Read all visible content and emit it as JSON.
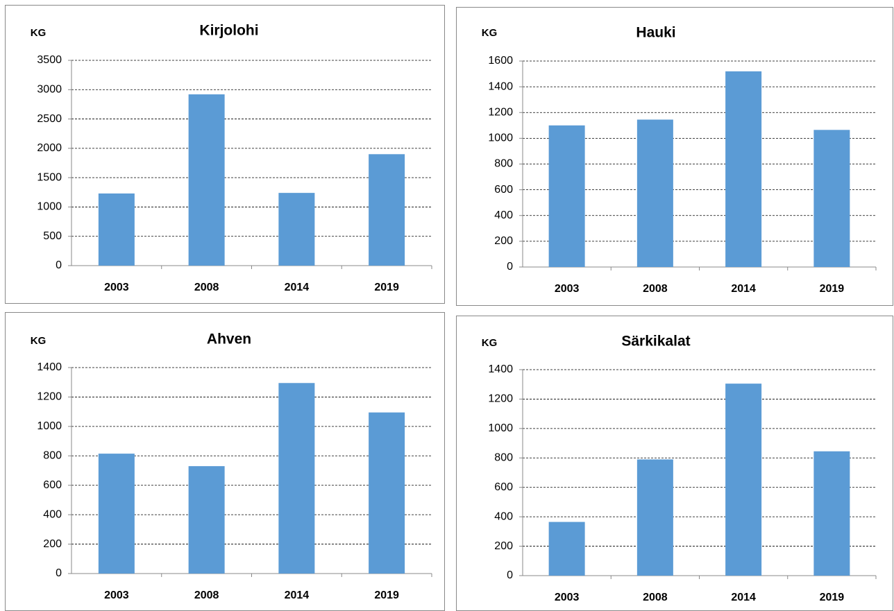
{
  "chart_data": [
    {
      "type": "bar",
      "title": "Kirjolohi",
      "y_label": "KG",
      "categories": [
        "2003",
        "2008",
        "2014",
        "2019"
      ],
      "values": [
        1230,
        2920,
        1240,
        1900
      ],
      "color": "#5b9bd5",
      "ylim": [
        0,
        3500
      ],
      "yticks": [
        0,
        500,
        1000,
        1500,
        2000,
        2500,
        3000,
        3500
      ],
      "grid": true
    },
    {
      "type": "bar",
      "title": "Hauki",
      "y_label": "KG",
      "categories": [
        "2003",
        "2008",
        "2014",
        "2019"
      ],
      "values": [
        1100,
        1145,
        1520,
        1065
      ],
      "color": "#5b9bd5",
      "ylim": [
        0,
        1600
      ],
      "yticks": [
        0,
        200,
        400,
        600,
        800,
        1000,
        1200,
        1400,
        1600
      ],
      "grid": true
    },
    {
      "type": "bar",
      "title": "Ahven",
      "y_label": "KG",
      "categories": [
        "2003",
        "2008",
        "2014",
        "2019"
      ],
      "values": [
        815,
        730,
        1295,
        1095
      ],
      "color": "#5b9bd5",
      "ylim": [
        0,
        1400
      ],
      "yticks": [
        0,
        200,
        400,
        600,
        800,
        1000,
        1200,
        1400
      ],
      "grid": true
    },
    {
      "type": "bar",
      "title": "Särkikalat",
      "y_label": "KG",
      "categories": [
        "2003",
        "2008",
        "2014",
        "2019"
      ],
      "values": [
        365,
        790,
        1305,
        845
      ],
      "color": "#5b9bd5",
      "ylim": [
        0,
        1400
      ],
      "yticks": [
        0,
        200,
        400,
        600,
        800,
        1000,
        1200,
        1400
      ],
      "grid": true
    }
  ]
}
